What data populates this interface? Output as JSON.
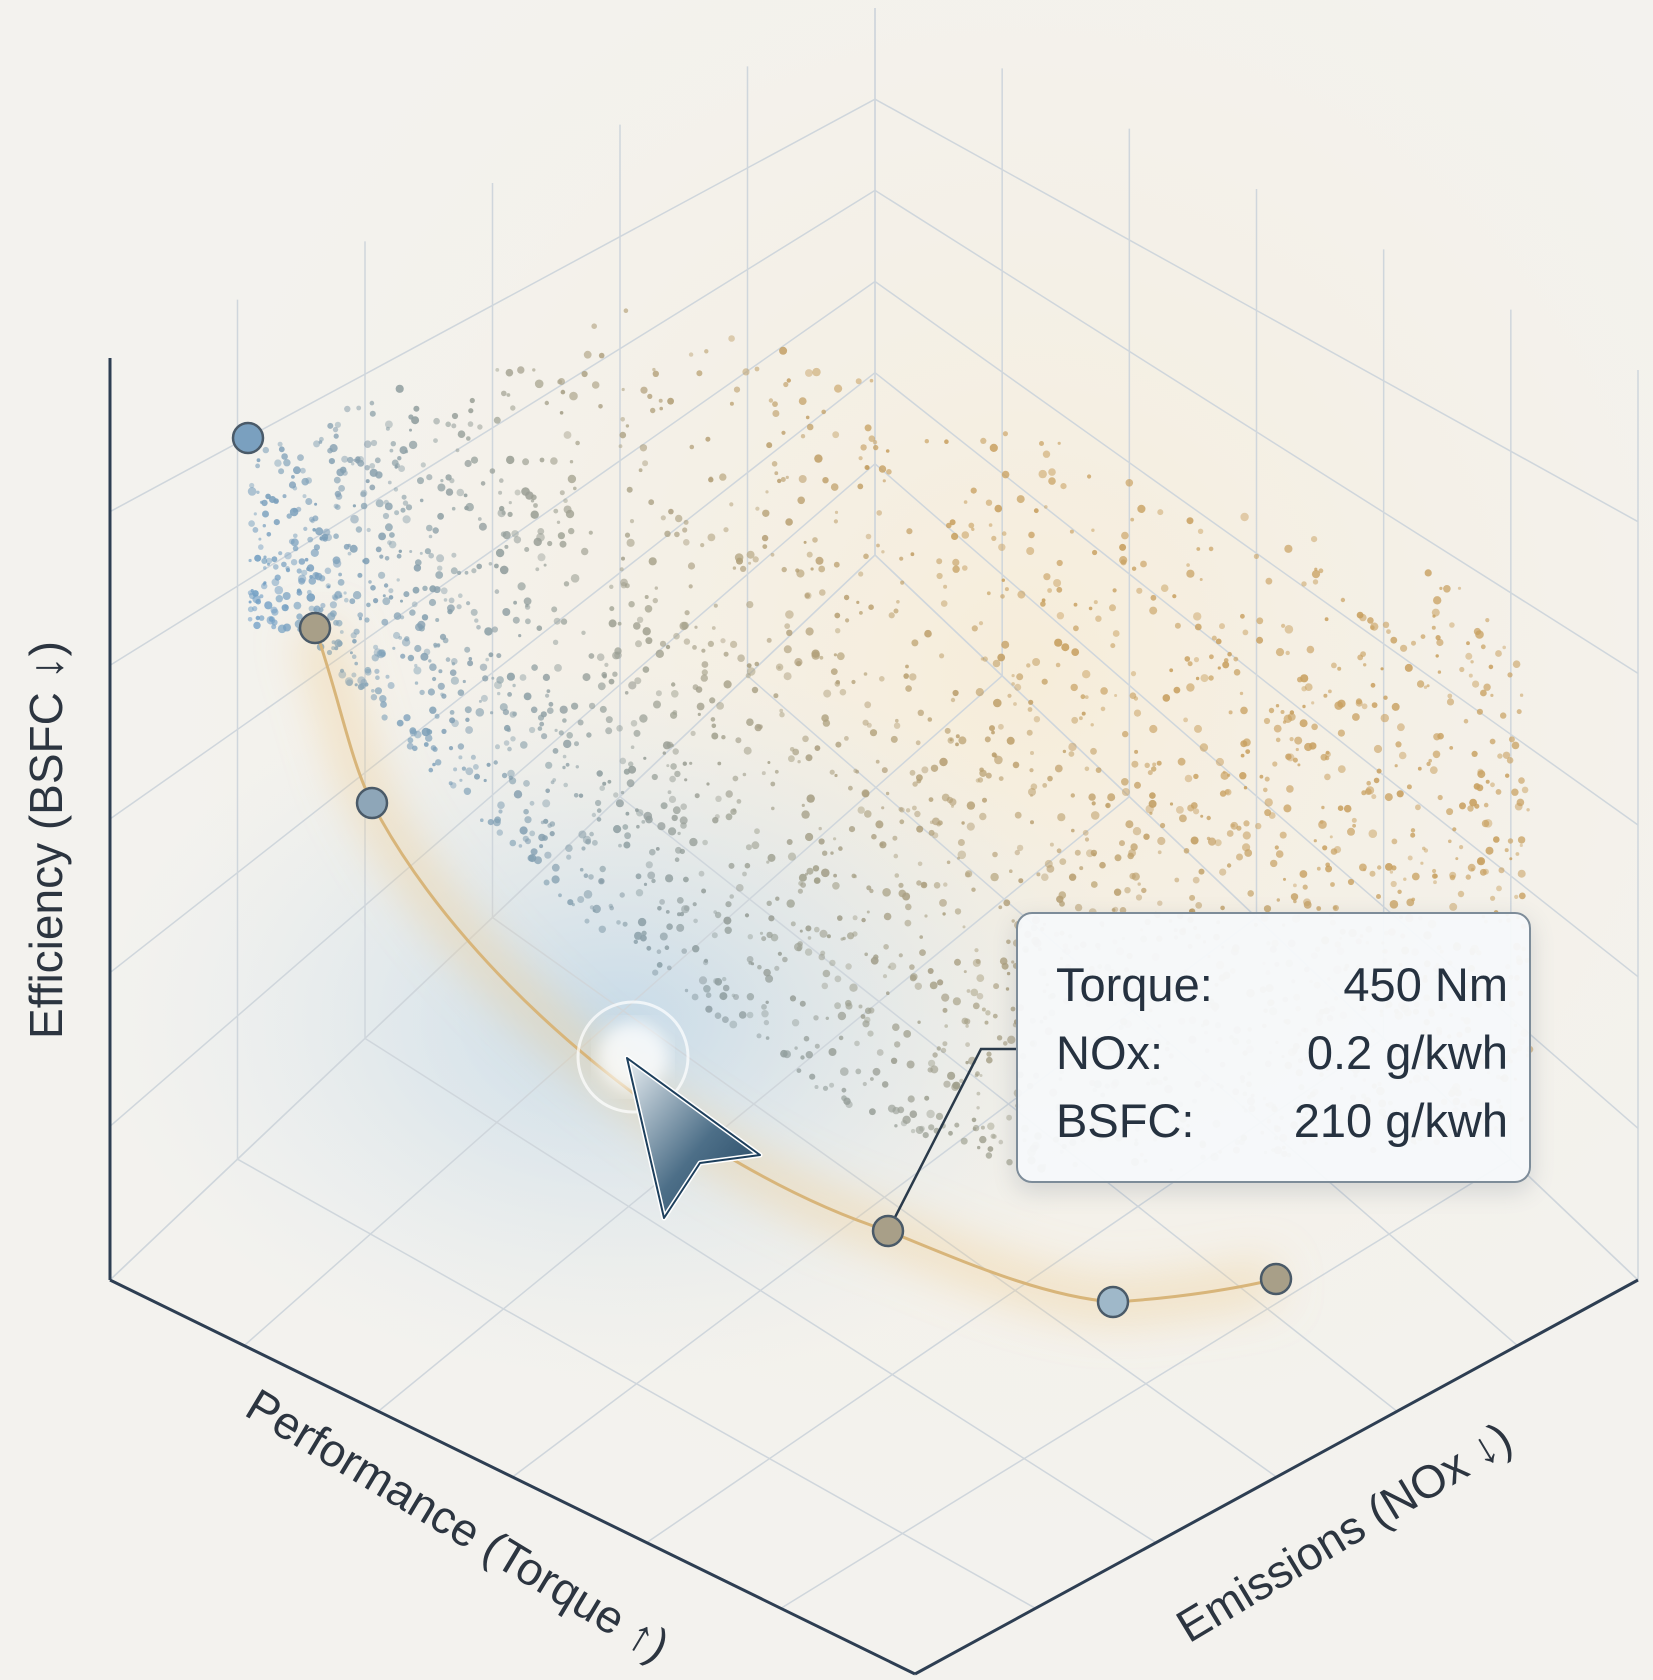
{
  "chart_data": {
    "type": "scatter",
    "subtype": "3d-scatter-with-pareto-front",
    "title": "",
    "axes": {
      "x": {
        "label": "Performance (Torque ↑)"
      },
      "y": {
        "label": "Emissions (NOx ↓)"
      },
      "z": {
        "label": "Efficiency (BSFC ↓)"
      }
    },
    "grid": true,
    "point_cloud": {
      "description_color_gradient": [
        "#6f9fc8",
        "#c8a060"
      ],
      "approx_point_count": 6000
    },
    "pareto_front": {
      "points": [
        {
          "color": "#7aa0bf"
        },
        {
          "color": "#a89f88"
        },
        {
          "color": "#8ea6b8"
        },
        {
          "color": "#a89f88"
        },
        {
          "color": "#9fb8c9"
        },
        {
          "color": "#a89f88"
        }
      ],
      "line_color": "#d8b57a"
    },
    "tooltip": {
      "rows": [
        {
          "key": "Torque:",
          "value": "450 Nm"
        },
        {
          "key": "NOx:",
          "value": "0.2 g/kwh"
        },
        {
          "key": "BSFC:",
          "value": "210 g/kwh"
        }
      ]
    },
    "colors": {
      "axis": "#2d3e52",
      "grid": "#cfd6dc",
      "cursor_fill": "#1f4a6e"
    }
  }
}
